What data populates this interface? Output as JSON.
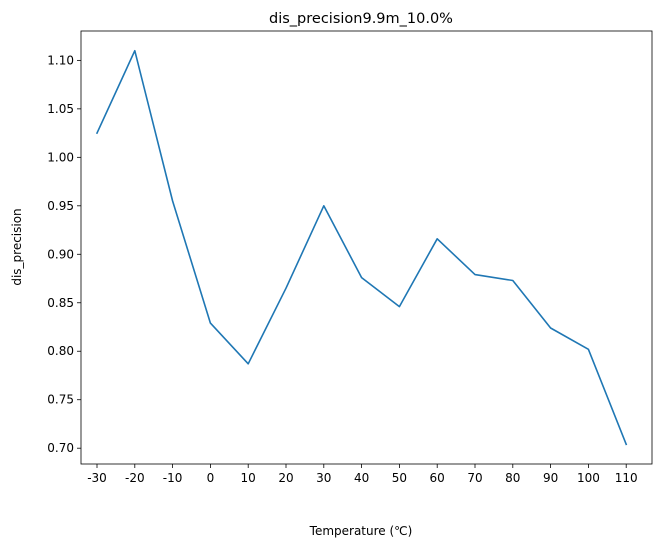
{
  "chart_data": {
    "type": "line",
    "title": "dis_precision9.9m_10.0%",
    "xlabel": "Temperature (℃)",
    "ylabel": "dis_precision",
    "categories": [
      "-30",
      "-20",
      "-10",
      "0",
      "10",
      "20",
      "30",
      "40",
      "50",
      "60",
      "70",
      "80",
      "90",
      "100",
      "110"
    ],
    "series": [
      {
        "values": [
          1.025,
          1.11,
          0.955,
          0.829,
          0.787,
          0.865,
          0.95,
          0.876,
          0.846,
          0.916,
          0.879,
          0.873,
          0.824,
          0.802,
          0.704
        ]
      }
    ],
    "yticks": [
      "0.70",
      "0.75",
      "0.80",
      "0.85",
      "0.90",
      "0.95",
      "1.00",
      "1.05",
      "1.10"
    ],
    "ylim": [
      0.6837,
      1.1303
    ],
    "grid": false,
    "colors": {
      "line": "#1f77b4",
      "axes": "#000000"
    }
  }
}
